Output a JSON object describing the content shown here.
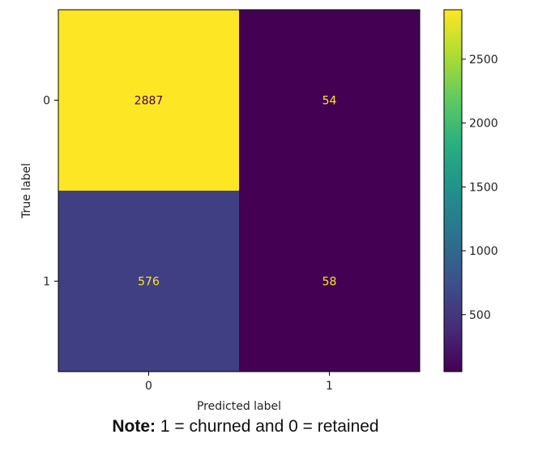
{
  "chart_data": {
    "type": "heatmap",
    "title": "",
    "xlabel": "Predicted label",
    "ylabel": "True label",
    "x_categories": [
      "0",
      "1"
    ],
    "y_categories": [
      "0",
      "1"
    ],
    "values": [
      [
        2887,
        54
      ],
      [
        576,
        58
      ]
    ],
    "colormap": "viridis",
    "colorbar": {
      "range": [
        54,
        2887
      ],
      "ticks": [
        500,
        1000,
        1500,
        2000,
        2500
      ]
    },
    "grid": false,
    "legend": "colorbar-right"
  },
  "note": {
    "label": "Note:",
    "text": " 1 = churned and 0 = retained"
  }
}
